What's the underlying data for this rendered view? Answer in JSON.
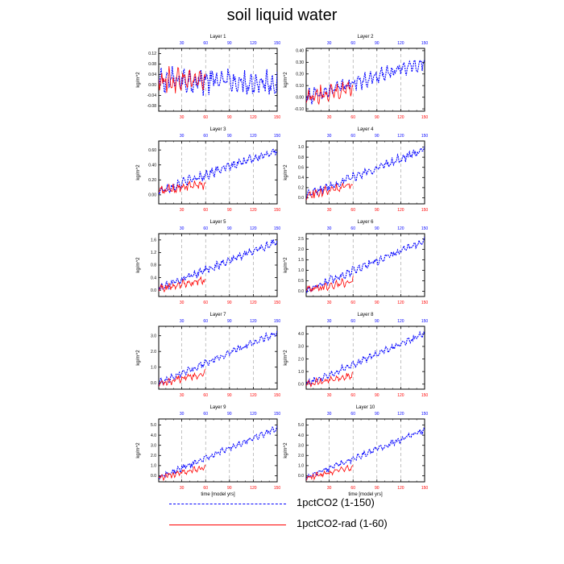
{
  "figure": {
    "title": "soil liquid water",
    "xlabel": "time [model yrs]",
    "ylabel": "kg/m^2",
    "top_ticks": [
      "30",
      "60",
      "90",
      "120",
      "150"
    ],
    "bottom_ticks": [
      "30",
      "60",
      "90",
      "120",
      "150"
    ]
  },
  "legend": {
    "items": [
      {
        "label": "1pctCO2 (1-150)",
        "color": "#0000ff",
        "style": "dashed"
      },
      {
        "label": "1pctCO2-rad (1-60)",
        "color": "#ff0000",
        "style": "solid"
      }
    ]
  },
  "colors": {
    "blue": "#0000ff",
    "red": "#ff0000",
    "grid": "#999999"
  },
  "chart_data": [
    {
      "type": "line",
      "title": "Layer 1",
      "ylabel": "kg/m^2",
      "xlim": [
        1,
        150
      ],
      "ylim": [
        -0.1,
        0.14
      ],
      "yticks": [
        -0.08,
        -0.04,
        0.0,
        0.04,
        0.08,
        0.12
      ],
      "ytick_labels": [
        "-0.08",
        "-0.04",
        "0.00",
        "0.04",
        "0.08",
        "0.12"
      ],
      "series": [
        {
          "name": "1pctCO2 (1-150)",
          "color": "#0000ff",
          "x_range": [
            1,
            150
          ],
          "start": 0.02,
          "end": 0.01,
          "noise": 0.045
        },
        {
          "name": "1pctCO2-rad (1-60)",
          "color": "#ff0000",
          "x_range": [
            1,
            60
          ],
          "start": 0.02,
          "end": 0.02,
          "noise": 0.04
        }
      ]
    },
    {
      "type": "line",
      "title": "Layer 2",
      "ylabel": "kg/m^2",
      "xlim": [
        1,
        150
      ],
      "ylim": [
        -0.12,
        0.42
      ],
      "yticks": [
        -0.1,
        0.0,
        0.1,
        0.2,
        0.3,
        0.4
      ],
      "ytick_labels": [
        "-0.10",
        "0.00",
        "0.10",
        "0.20",
        "0.30",
        "0.40"
      ],
      "series": [
        {
          "name": "1pctCO2 (1-150)",
          "color": "#0000ff",
          "x_range": [
            1,
            150
          ],
          "start": 0.0,
          "end": 0.3,
          "noise": 0.06
        },
        {
          "name": "1pctCO2-rad (1-60)",
          "color": "#ff0000",
          "x_range": [
            1,
            60
          ],
          "start": 0.0,
          "end": 0.08,
          "noise": 0.06
        }
      ]
    },
    {
      "type": "line",
      "title": "Layer 3",
      "ylabel": "kg/m^2",
      "xlim": [
        1,
        150
      ],
      "ylim": [
        -0.12,
        0.72
      ],
      "yticks": [
        0.0,
        0.2,
        0.4,
        0.6
      ],
      "ytick_labels": [
        "0.00",
        "0.20",
        "0.40",
        "0.60"
      ],
      "series": [
        {
          "name": "1pctCO2 (1-150)",
          "color": "#0000ff",
          "x_range": [
            1,
            150
          ],
          "start": 0.05,
          "end": 0.6,
          "noise": 0.06
        },
        {
          "name": "1pctCO2-rad (1-60)",
          "color": "#ff0000",
          "x_range": [
            1,
            60
          ],
          "start": 0.05,
          "end": 0.15,
          "noise": 0.06
        }
      ]
    },
    {
      "type": "line",
      "title": "Layer 4",
      "ylabel": "kg/m^2",
      "xlim": [
        1,
        150
      ],
      "ylim": [
        -0.12,
        1.12
      ],
      "yticks": [
        0.0,
        0.2,
        0.4,
        0.6,
        0.8,
        1.0
      ],
      "ytick_labels": [
        "0.0",
        "0.2",
        "0.4",
        "0.6",
        "0.8",
        "1.0"
      ],
      "series": [
        {
          "name": "1pctCO2 (1-150)",
          "color": "#0000ff",
          "x_range": [
            1,
            150
          ],
          "start": 0.05,
          "end": 0.95,
          "noise": 0.08
        },
        {
          "name": "1pctCO2-rad (1-60)",
          "color": "#ff0000",
          "x_range": [
            1,
            60
          ],
          "start": 0.05,
          "end": 0.25,
          "noise": 0.08
        }
      ]
    },
    {
      "type": "line",
      "title": "Layer 5",
      "ylabel": "kg/m^2",
      "xlim": [
        1,
        150
      ],
      "ylim": [
        -0.2,
        1.8
      ],
      "yticks": [
        0.0,
        0.4,
        0.8,
        1.2,
        1.6
      ],
      "ytick_labels": [
        "0.0",
        "0.4",
        "0.8",
        "1.2",
        "1.6"
      ],
      "series": [
        {
          "name": "1pctCO2 (1-150)",
          "color": "#0000ff",
          "x_range": [
            1,
            150
          ],
          "start": 0.05,
          "end": 1.55,
          "noise": 0.12
        },
        {
          "name": "1pctCO2-rad (1-60)",
          "color": "#ff0000",
          "x_range": [
            1,
            60
          ],
          "start": 0.05,
          "end": 0.35,
          "noise": 0.12
        }
      ]
    },
    {
      "type": "line",
      "title": "Layer 6",
      "ylabel": "kg/m^2",
      "xlim": [
        1,
        150
      ],
      "ylim": [
        -0.25,
        2.75
      ],
      "yticks": [
        0.0,
        0.5,
        1.0,
        1.5,
        2.0,
        2.5
      ],
      "ytick_labels": [
        "0.0",
        "0.5",
        "1.0",
        "1.5",
        "2.0",
        "2.5"
      ],
      "series": [
        {
          "name": "1pctCO2 (1-150)",
          "color": "#0000ff",
          "x_range": [
            1,
            150
          ],
          "start": 0.05,
          "end": 2.4,
          "noise": 0.18
        },
        {
          "name": "1pctCO2-rad (1-60)",
          "color": "#ff0000",
          "x_range": [
            1,
            60
          ],
          "start": 0.05,
          "end": 0.5,
          "noise": 0.18
        }
      ]
    },
    {
      "type": "line",
      "title": "Layer 7",
      "ylabel": "kg/m^2",
      "xlim": [
        1,
        150
      ],
      "ylim": [
        -0.4,
        3.6
      ],
      "yticks": [
        0.0,
        1.0,
        2.0,
        3.0
      ],
      "ytick_labels": [
        "0.0",
        "1.0",
        "2.0",
        "3.0"
      ],
      "series": [
        {
          "name": "1pctCO2 (1-150)",
          "color": "#0000ff",
          "x_range": [
            1,
            150
          ],
          "start": 0.0,
          "end": 3.2,
          "noise": 0.22
        },
        {
          "name": "1pctCO2-rad (1-60)",
          "color": "#ff0000",
          "x_range": [
            1,
            60
          ],
          "start": 0.0,
          "end": 0.6,
          "noise": 0.22
        }
      ]
    },
    {
      "type": "line",
      "title": "Layer 8",
      "ylabel": "kg/m^2",
      "xlim": [
        1,
        150
      ],
      "ylim": [
        -0.4,
        4.6
      ],
      "yticks": [
        0.0,
        1.0,
        2.0,
        3.0,
        4.0
      ],
      "ytick_labels": [
        "0.0",
        "1.0",
        "2.0",
        "3.0",
        "4.0"
      ],
      "series": [
        {
          "name": "1pctCO2 (1-150)",
          "color": "#0000ff",
          "x_range": [
            1,
            150
          ],
          "start": 0.0,
          "end": 4.0,
          "noise": 0.25
        },
        {
          "name": "1pctCO2-rad (1-60)",
          "color": "#ff0000",
          "x_range": [
            1,
            60
          ],
          "start": 0.0,
          "end": 0.7,
          "noise": 0.25
        }
      ]
    },
    {
      "type": "line",
      "title": "Layer 9",
      "ylabel": "kg/m^2",
      "xlim": [
        1,
        150
      ],
      "ylim": [
        -0.6,
        5.6
      ],
      "yticks": [
        0.0,
        1.0,
        2.0,
        3.0,
        4.0,
        5.0
      ],
      "ytick_labels": [
        "0.0",
        "1.0",
        "2.0",
        "3.0",
        "4.0",
        "5.0"
      ],
      "series": [
        {
          "name": "1pctCO2 (1-150)",
          "color": "#0000ff",
          "x_range": [
            1,
            150
          ],
          "start": -0.2,
          "end": 4.7,
          "noise": 0.28
        },
        {
          "name": "1pctCO2-rad (1-60)",
          "color": "#ff0000",
          "x_range": [
            1,
            60
          ],
          "start": -0.2,
          "end": 0.8,
          "noise": 0.28
        }
      ]
    },
    {
      "type": "line",
      "title": "Layer 10",
      "ylabel": "kg/m^2",
      "xlim": [
        1,
        150
      ],
      "ylim": [
        -0.6,
        5.6
      ],
      "yticks": [
        0.0,
        1.0,
        2.0,
        3.0,
        4.0,
        5.0
      ],
      "ytick_labels": [
        "0.0",
        "1.0",
        "2.0",
        "3.0",
        "4.0",
        "5.0"
      ],
      "series": [
        {
          "name": "1pctCO2 (1-150)",
          "color": "#0000ff",
          "x_range": [
            1,
            150
          ],
          "start": -0.2,
          "end": 4.5,
          "noise": 0.28
        },
        {
          "name": "1pctCO2-rad (1-60)",
          "color": "#ff0000",
          "x_range": [
            1,
            60
          ],
          "start": -0.2,
          "end": 0.8,
          "noise": 0.28
        }
      ]
    }
  ]
}
